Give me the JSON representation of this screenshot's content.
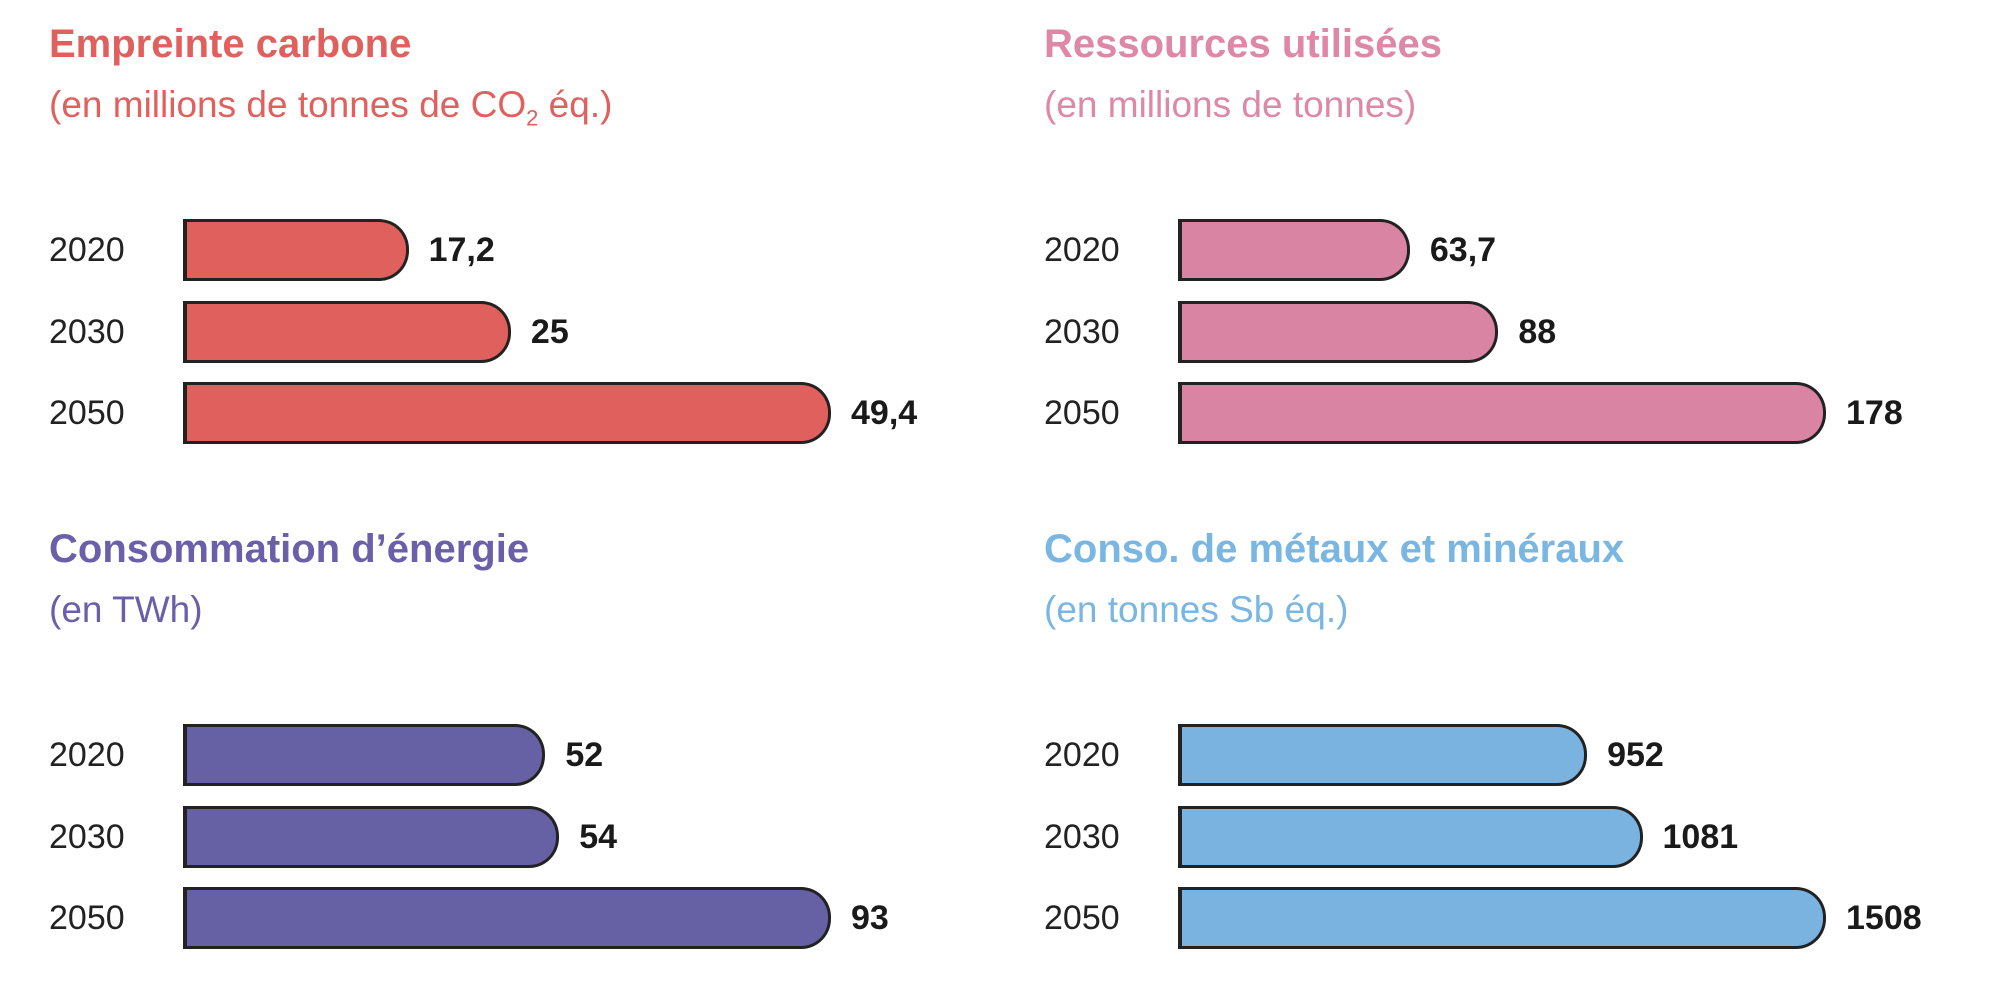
{
  "chart_data": [
    {
      "type": "bar",
      "title": "Empreinte carbone",
      "subtitle": "(en millions de tonnes de CO",
      "subtitle_sub": "2",
      "subtitle_end": " éq.)",
      "color": "#e0605e",
      "title_color": "#e0605e",
      "categories": [
        "2020",
        "2030",
        "2050"
      ],
      "values": [
        17.2,
        25,
        49.4
      ],
      "labels": [
        "17,2",
        "25",
        "49,4"
      ]
    },
    {
      "type": "bar",
      "title": "Ressources utilisées",
      "subtitle": "(en millions de tonnes)",
      "color": "#d984a2",
      "title_color": "#de87a6",
      "categories": [
        "2020",
        "2030",
        "2050"
      ],
      "values": [
        63.7,
        88,
        178
      ],
      "labels": [
        "63,7",
        "88",
        "178"
      ]
    },
    {
      "type": "bar",
      "title": "Consommation d’énergie",
      "subtitle": "(en TWh)",
      "color": "#6660a5",
      "title_color": "#6a5fa8",
      "categories": [
        "2020",
        "2030",
        "2050"
      ],
      "values": [
        52,
        54,
        93
      ],
      "labels": [
        "52",
        "54",
        "93"
      ]
    },
    {
      "type": "bar",
      "title": "Conso. de métaux et minéraux",
      "subtitle": "(en tonnes Sb éq.)",
      "color": "#7ab2e0",
      "title_color": "#7ab6e2",
      "categories": [
        "2020",
        "2030",
        "2050"
      ],
      "values": [
        952,
        1081,
        1508
      ],
      "labels": [
        "952",
        "1081",
        "1508"
      ]
    }
  ]
}
